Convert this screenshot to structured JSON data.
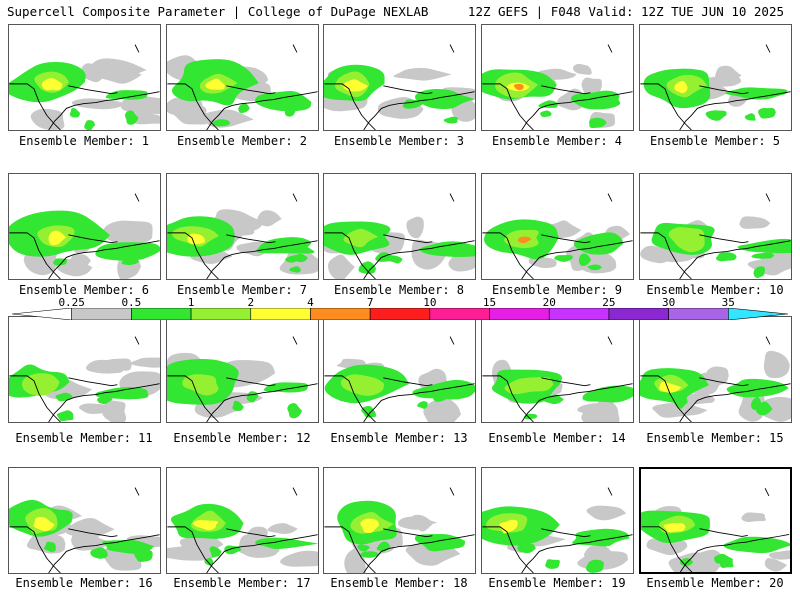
{
  "header": {
    "left_title": "Supercell Composite Parameter | College of DuPage NEXLAB",
    "right_title": "12Z GEFS | F048 Valid: 12Z TUE JUN 10 2025"
  },
  "members": [
    {
      "label": "Ensemble Member: 1"
    },
    {
      "label": "Ensemble Member: 2"
    },
    {
      "label": "Ensemble Member: 3"
    },
    {
      "label": "Ensemble Member: 4"
    },
    {
      "label": "Ensemble Member: 5"
    },
    {
      "label": "Ensemble Member: 6"
    },
    {
      "label": "Ensemble Member: 7"
    },
    {
      "label": "Ensemble Member: 8"
    },
    {
      "label": "Ensemble Member: 9"
    },
    {
      "label": "Ensemble Member: 10"
    },
    {
      "label": "Ensemble Member: 11"
    },
    {
      "label": "Ensemble Member: 12"
    },
    {
      "label": "Ensemble Member: 13"
    },
    {
      "label": "Ensemble Member: 14"
    },
    {
      "label": "Ensemble Member: 15"
    },
    {
      "label": "Ensemble Member: 16"
    },
    {
      "label": "Ensemble Member: 17"
    },
    {
      "label": "Ensemble Member: 18"
    },
    {
      "label": "Ensemble Member: 19"
    },
    {
      "label": "Ensemble Member: 20",
      "selected": true
    }
  ],
  "colorbar": {
    "labels": [
      "0.25",
      "0.5",
      "1",
      "2",
      "4",
      "7",
      "10",
      "15",
      "20",
      "25",
      "30",
      "35"
    ],
    "colors": [
      "#ffffff",
      "#c8c8c8",
      "#32e632",
      "#96f032",
      "#ffff32",
      "#ff8c1e",
      "#ff1e1e",
      "#ff1e96",
      "#e61ee6",
      "#c832ff",
      "#8c28d2",
      "#aa64e6",
      "#32e6ff"
    ]
  }
}
